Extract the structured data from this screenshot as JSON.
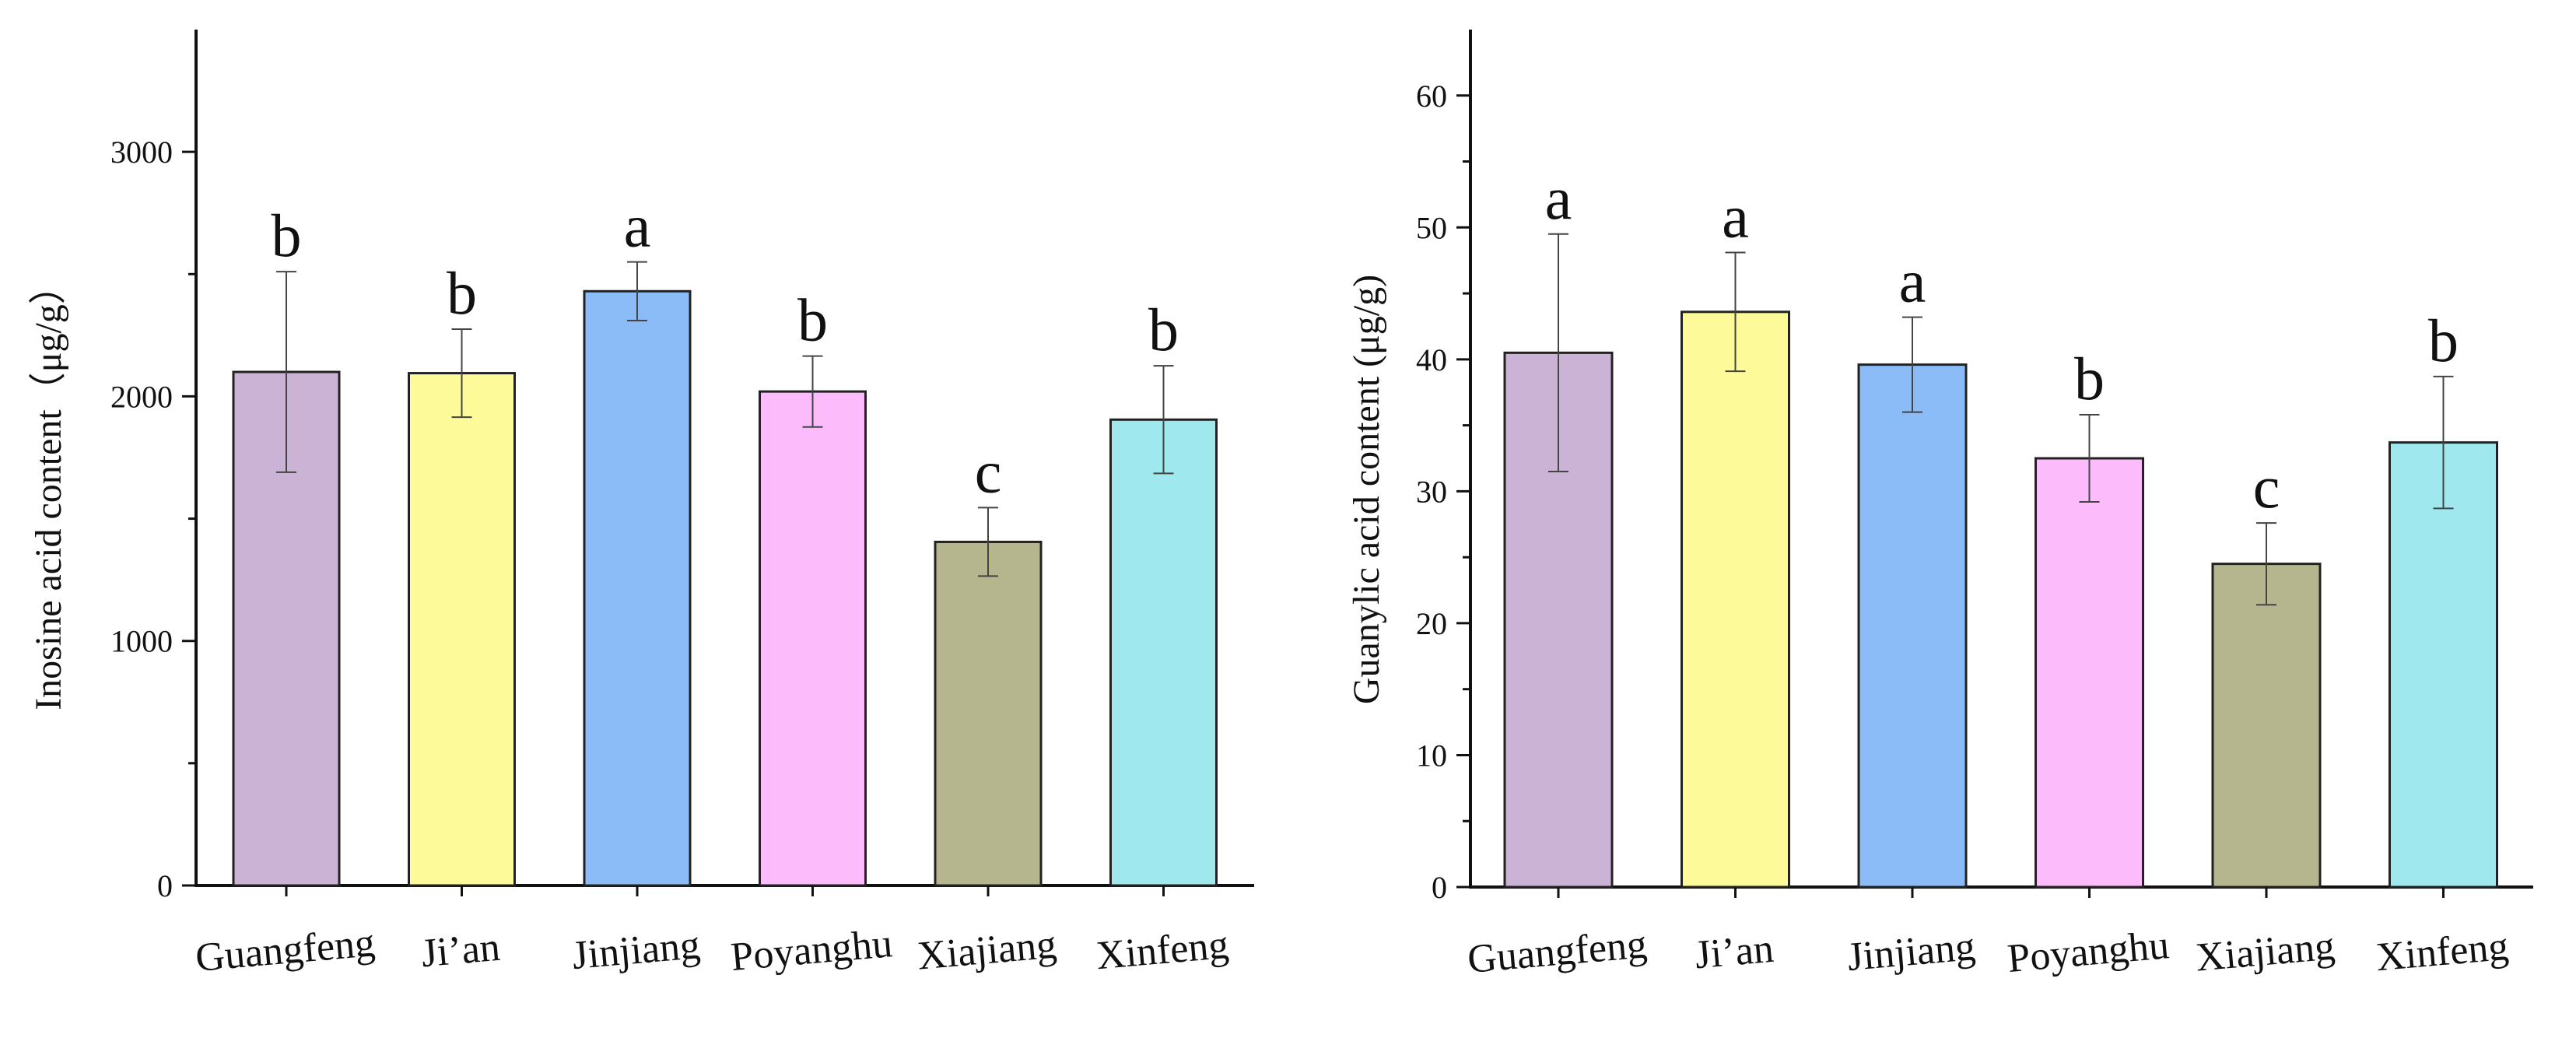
{
  "chart_data": [
    {
      "type": "bar",
      "title": "",
      "xlabel": "",
      "ylabel": "Inosine acid content（μg/g）",
      "ylim": [
        0,
        3500
      ],
      "yticks": [
        0,
        1000,
        2000,
        3000
      ],
      "categories": [
        "Guangfeng",
        "Ji’an",
        "Jinjiang",
        "Poyanghu",
        "Xiajiang",
        "Xinfeng"
      ],
      "values": [
        2100,
        2095,
        2430,
        2020,
        1405,
        1905
      ],
      "errors": [
        410,
        180,
        120,
        145,
        140,
        220
      ],
      "significance": [
        "b",
        "b",
        "a",
        "b",
        "c",
        "b"
      ],
      "colors": [
        "#cbb3d6",
        "#fdfb99",
        "#8cbcf7",
        "#fcbcfc",
        "#b5b58e",
        "#9ee8ee"
      ]
    },
    {
      "type": "bar",
      "title": "",
      "xlabel": "",
      "ylabel": "Guanylic acid content (μg/g)",
      "ylim": [
        0,
        65
      ],
      "yticks": [
        0,
        10,
        20,
        30,
        40,
        50,
        60
      ],
      "categories": [
        "Guangfeng",
        "Ji’an",
        "Jinjiang",
        "Poyanghu",
        "Xiajiang",
        "Xinfeng"
      ],
      "values": [
        40.5,
        43.6,
        39.6,
        32.5,
        24.5,
        33.7
      ],
      "errors": [
        9.0,
        4.5,
        3.6,
        3.3,
        3.1,
        5.0
      ],
      "significance": [
        "a",
        "a",
        "a",
        "b",
        "c",
        "b"
      ],
      "colors": [
        "#cbb3d6",
        "#fdfb99",
        "#8cbcf7",
        "#fcbcfc",
        "#b5b58e",
        "#9ee8ee"
      ]
    }
  ]
}
